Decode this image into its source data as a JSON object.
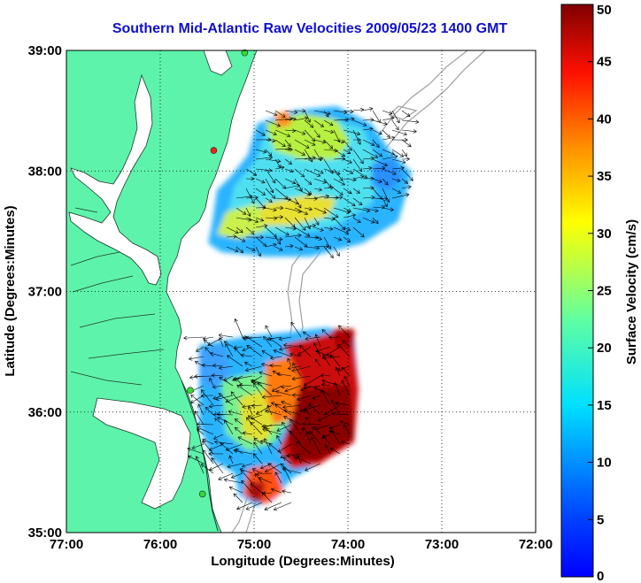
{
  "title": "Southern Mid-Atlantic Raw Velocities 2009/05/23 1400 GMT",
  "map": {
    "xlabel": "Longitude (Degrees:Minutes)",
    "ylabel": "Latitude (Degrees:Minutes)",
    "lon_range": [
      -77,
      -72
    ],
    "lat_range": [
      35,
      39
    ],
    "lon_ticks": [
      {
        "value": -77,
        "label": "77:00"
      },
      {
        "value": -76,
        "label": "76:00"
      },
      {
        "value": -75,
        "label": "75:00"
      },
      {
        "value": -74,
        "label": "74:00"
      },
      {
        "value": -73,
        "label": "73:00"
      },
      {
        "value": -72,
        "label": "72:00"
      }
    ],
    "lat_ticks": [
      {
        "value": 39,
        "label": "39:00"
      },
      {
        "value": 38,
        "label": "38:00"
      },
      {
        "value": 37,
        "label": "37:00"
      },
      {
        "value": 36,
        "label": "36:00"
      },
      {
        "value": 35,
        "label": "35:00"
      }
    ],
    "grid": "dotted",
    "land_color": "#5ef3aa",
    "contour_color": "#a0a0a0",
    "stations": [
      {
        "lon": -75.1,
        "lat": 38.98,
        "color": "#33dd33"
      },
      {
        "lon": -75.43,
        "lat": 38.17,
        "color": "#ee2222"
      },
      {
        "lon": -75.68,
        "lat": 36.18,
        "color": "#33dd33"
      },
      {
        "lon": -75.55,
        "lat": 35.32,
        "color": "#33dd33"
      }
    ]
  },
  "colorbar": {
    "label": "Surface Velocity (cm/s)",
    "min": 0,
    "max": 50,
    "ticks": [
      0,
      5,
      10,
      15,
      20,
      25,
      30,
      35,
      40,
      45,
      50
    ],
    "colormap": "jet"
  }
}
